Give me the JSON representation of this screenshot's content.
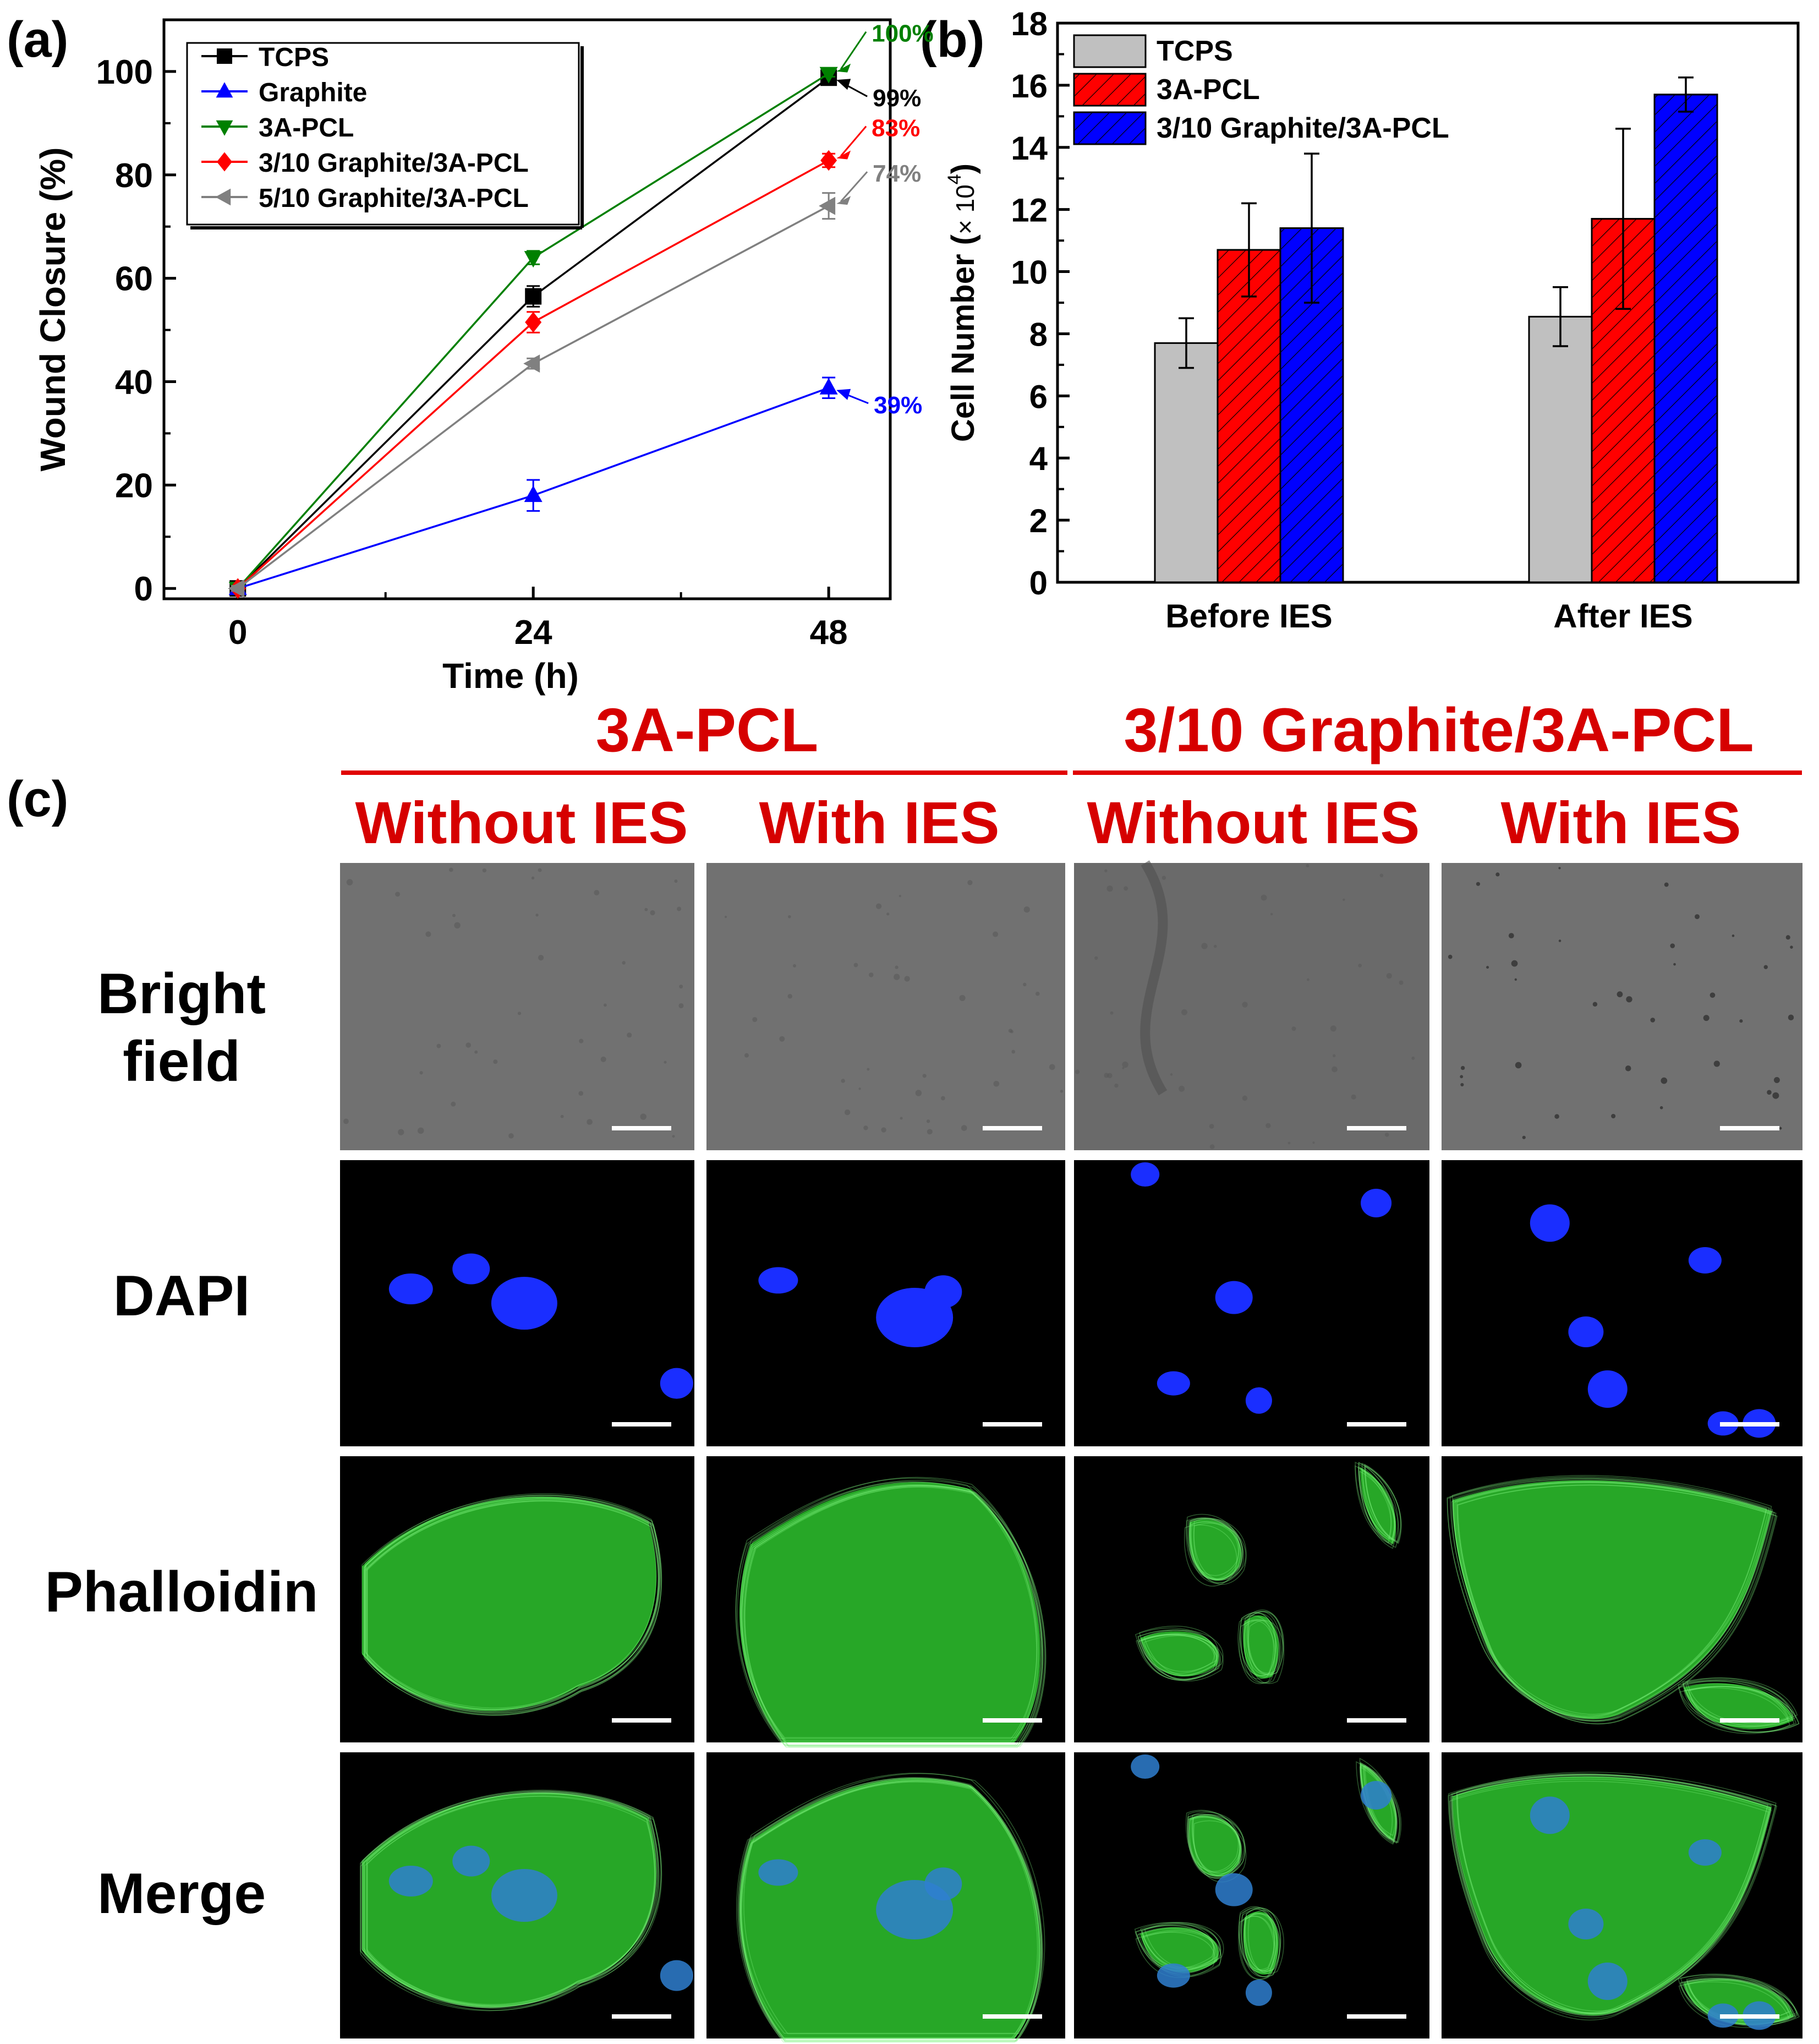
{
  "panel_labels": {
    "a": "(a)",
    "b": "(b)",
    "c": "(c)"
  },
  "chart_data": [
    {
      "type": "line",
      "xlabel": "Time (h)",
      "ylabel": "Wound Closure (%)",
      "x": [
        0,
        24,
        48
      ],
      "xticks": [
        "0",
        "24",
        "48"
      ],
      "yticks": [
        "0",
        "20",
        "40",
        "60",
        "80",
        "100"
      ],
      "xlim": [
        -6,
        53
      ],
      "ylim": [
        -2,
        110
      ],
      "legend_position": "top-left",
      "series": [
        {
          "name": "TCPS",
          "values": [
            0,
            56.5,
            98.8
          ],
          "err": [
            0.5,
            2.0,
            1.0
          ],
          "color": "#000000",
          "marker": "square",
          "end_label": "99%"
        },
        {
          "name": "Graphite",
          "values": [
            0,
            18,
            38.8
          ],
          "err": [
            0.5,
            3.0,
            2.0
          ],
          "color": "#0000ff",
          "marker": "triangle-up",
          "end_label": "39%"
        },
        {
          "name": "3A-PCL",
          "values": [
            0,
            64,
            99.6
          ],
          "err": [
            0.5,
            1.3,
            0.6
          ],
          "color": "#008000",
          "marker": "triangle-down",
          "end_label": "100%"
        },
        {
          "name": "3/10 Graphite/3A-PCL",
          "values": [
            0,
            51.5,
            82.8
          ],
          "err": [
            0.5,
            2.0,
            1.3
          ],
          "color": "#ff0000",
          "marker": "diamond",
          "end_label": "83%"
        },
        {
          "name": "5/10 Graphite/3A-PCL",
          "values": [
            0,
            43.5,
            74
          ],
          "err": [
            0.5,
            1.0,
            2.5
          ],
          "color": "#808080",
          "marker": "triangle-left",
          "end_label": "74%"
        }
      ]
    },
    {
      "type": "bar",
      "ylabel_main": "Cell Number (",
      "ylabel_tail": ")",
      "ylabel_times": "× 10",
      "ylabel_sup": "4",
      "categories": [
        "Before IES",
        "After IES"
      ],
      "yticks": [
        "0",
        "2",
        "4",
        "6",
        "8",
        "10",
        "12",
        "14",
        "16",
        "18"
      ],
      "ylim": [
        0,
        18
      ],
      "legend_position": "top-left",
      "series": [
        {
          "name": "TCPS",
          "values": [
            7.7,
            8.55
          ],
          "err": [
            0.8,
            0.95
          ],
          "color": "#c0c0c0",
          "hatch": false
        },
        {
          "name": "3A-PCL",
          "values": [
            10.7,
            11.7
          ],
          "err": [
            1.5,
            2.9
          ],
          "color": "#ff0000",
          "hatch": true
        },
        {
          "name": "3/10 Graphite/3A-PCL",
          "values": [
            11.4,
            15.7
          ],
          "err": [
            2.4,
            0.55
          ],
          "color": "#0000ff",
          "hatch": true
        }
      ]
    }
  ],
  "panel_c": {
    "groups": [
      "3A-PCL",
      "3/10 Graphite/3A-PCL"
    ],
    "columns": [
      "Without IES",
      "With IES",
      "Without IES",
      "With IES"
    ],
    "rows": [
      "Bright\nfield",
      "DAPI",
      "Phalloidin",
      "Merge"
    ],
    "colors": {
      "title": "#d60000",
      "nuclei": "#1a2eff",
      "actin": "#2ec42e"
    }
  }
}
